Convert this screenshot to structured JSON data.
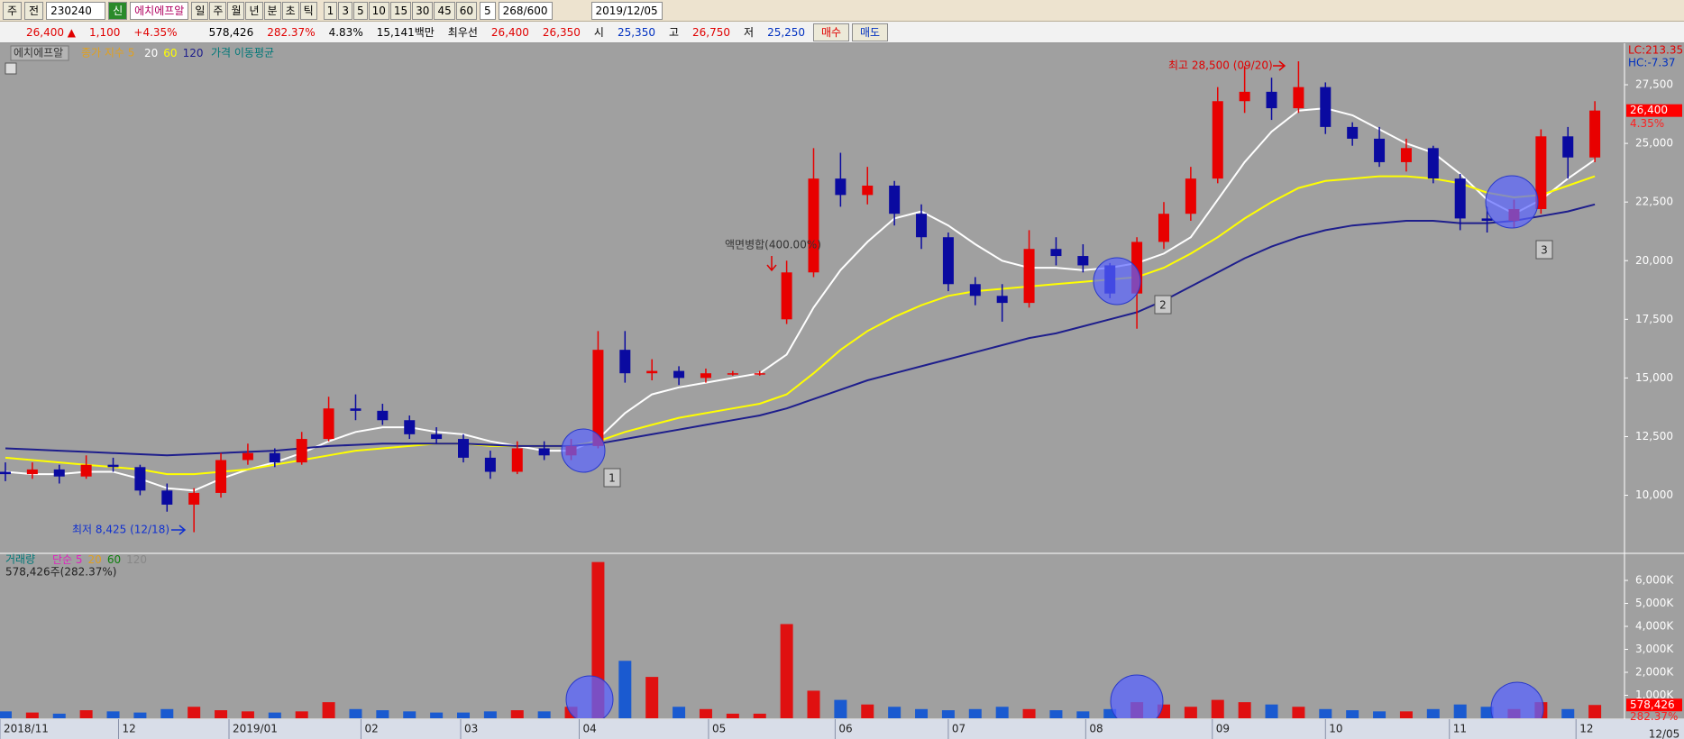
{
  "toolbar": {
    "market": "주",
    "prev": "전",
    "code": "230240",
    "new": "신",
    "name": "에치에프알",
    "periods": [
      "일",
      "주",
      "월",
      "년",
      "분",
      "초",
      "틱"
    ],
    "minutes": [
      "1",
      "3",
      "5",
      "10",
      "15",
      "30",
      "45",
      "60"
    ],
    "unit": "5",
    "count": "268/600",
    "date": "2019/12/05"
  },
  "quote": {
    "price": "26,400 ▲",
    "change": "1,100",
    "rate": "+4.35%",
    "volume": "578,426",
    "volume_rate": "282.37%",
    "turnover": "4.83%",
    "amount": "15,141백만",
    "best_label": "최우선",
    "ask": "26,400",
    "bid": "26,350",
    "open_label": "시",
    "open": "25,350",
    "high_label": "고",
    "high": "26,750",
    "low_label": "저",
    "low": "25,250",
    "buy": "매수",
    "sell": "매도"
  },
  "chart_data": {
    "type": "candlestick",
    "name": "에치에프알",
    "ma_label": "종가 지수 5",
    "ma_title": "가격 이동평균",
    "up_color": "#e80000",
    "down_color": "#0a0aa0",
    "open": [
      11000,
      10900,
      11100,
      10800,
      11300,
      11200,
      10200,
      9600,
      10100,
      11500,
      11800,
      11400,
      12400,
      13700,
      13600,
      13200,
      12600,
      12400,
      11600,
      11000,
      12000,
      11700,
      12100,
      16200,
      15200,
      15300,
      15000,
      15200,
      15200,
      17500,
      19500,
      23500,
      22800,
      23200,
      22000,
      21000,
      19000,
      18500,
      18200,
      20500,
      20200,
      19800,
      18600,
      20800,
      22000,
      23500,
      26800,
      27200,
      26500,
      27400,
      25700,
      25200,
      24200,
      24800,
      23500,
      21800,
      21700,
      22200,
      25300,
      24400
    ],
    "high": [
      11400,
      11400,
      11300,
      11700,
      11600,
      11300,
      10500,
      10300,
      11800,
      12200,
      12000,
      12700,
      14200,
      14300,
      13900,
      13400,
      12900,
      12600,
      11900,
      12300,
      12300,
      12400,
      17000,
      17000,
      15800,
      15500,
      15400,
      15300,
      15300,
      20000,
      24800,
      24600,
      24000,
      23400,
      22400,
      21200,
      19300,
      19000,
      21300,
      21000,
      20700,
      19900,
      21000,
      22500,
      24000,
      27400,
      28300,
      27800,
      28500,
      27600,
      25900,
      25700,
      25200,
      24900,
      23700,
      22300,
      22600,
      25600,
      25700,
      26800
    ],
    "low": [
      10600,
      10700,
      10500,
      10700,
      11000,
      10000,
      9300,
      8425,
      9900,
      11300,
      11200,
      11300,
      12300,
      13200,
      13000,
      12400,
      12200,
      11400,
      10700,
      10900,
      11500,
      11500,
      12000,
      14800,
      14900,
      14700,
      14800,
      15100,
      15100,
      17300,
      19300,
      22300,
      22400,
      21500,
      20500,
      18700,
      18100,
      17400,
      18000,
      19800,
      19500,
      18400,
      17100,
      20500,
      21700,
      23300,
      26300,
      26000,
      26300,
      25400,
      24900,
      24000,
      23800,
      23300,
      21300,
      21200,
      21400,
      22000,
      23500,
      24200
    ],
    "close": [
      10900,
      11100,
      10800,
      11300,
      11200,
      10200,
      9600,
      10100,
      11500,
      11800,
      11400,
      12400,
      13700,
      13600,
      13200,
      12600,
      12400,
      11600,
      11000,
      12000,
      11700,
      12100,
      16200,
      15200,
      15300,
      15000,
      15200,
      15200,
      15200,
      19500,
      23500,
      22800,
      23200,
      22000,
      21000,
      19000,
      18500,
      18200,
      20500,
      20200,
      19800,
      18600,
      20800,
      22000,
      23500,
      26800,
      27200,
      26500,
      27400,
      25700,
      25200,
      24200,
      24800,
      23500,
      21800,
      21700,
      22200,
      25300,
      24400,
      26400
    ],
    "volume": [
      300,
      250,
      200,
      350,
      300,
      250,
      400,
      500,
      350,
      300,
      250,
      300,
      700,
      400,
      350,
      300,
      250,
      250,
      300,
      350,
      300,
      500,
      6800,
      2500,
      1800,
      500,
      400,
      200,
      200,
      4100,
      1200,
      800,
      600,
      500,
      400,
      350,
      400,
      500,
      400,
      350,
      300,
      400,
      700,
      600,
      500,
      800,
      700,
      600,
      500,
      400,
      350,
      300,
      300,
      400,
      600,
      500,
      400,
      700,
      400,
      578.426
    ],
    "series": [
      {
        "name": "20",
        "color": "#ffffff",
        "values": [
          11000,
          10900,
          10900,
          11000,
          11000,
          10700,
          10300,
          10200,
          10700,
          11100,
          11400,
          11800,
          12300,
          12700,
          12900,
          12900,
          12700,
          12600,
          12300,
          12100,
          11900,
          11900,
          12400,
          13500,
          14300,
          14600,
          14800,
          15000,
          15200,
          16000,
          18000,
          19600,
          20800,
          21800,
          22100,
          21500,
          20700,
          20000,
          19700,
          19700,
          19600,
          19700,
          19900,
          20300,
          21000,
          22600,
          24200,
          25500,
          26400,
          26500,
          26200,
          25600,
          25000,
          24600,
          23700,
          22600,
          22000,
          22600,
          23500,
          24300
        ]
      },
      {
        "name": "60",
        "color": "#ffff00",
        "values": [
          11600,
          11500,
          11400,
          11300,
          11200,
          11100,
          10900,
          10900,
          11000,
          11100,
          11300,
          11500,
          11700,
          11900,
          12000,
          12100,
          12200,
          12200,
          12100,
          12100,
          12100,
          12100,
          12300,
          12700,
          13000,
          13300,
          13500,
          13700,
          13900,
          14300,
          15200,
          16200,
          17000,
          17600,
          18100,
          18500,
          18700,
          18800,
          18900,
          19000,
          19100,
          19200,
          19300,
          19700,
          20300,
          21000,
          21800,
          22500,
          23100,
          23400,
          23500,
          23600,
          23600,
          23500,
          23300,
          22900,
          22700,
          22800,
          23200,
          23600
        ]
      },
      {
        "name": "120",
        "color": "#1e1e8c",
        "values": [
          12000,
          11950,
          11900,
          11850,
          11800,
          11750,
          11700,
          11750,
          11800,
          11850,
          11900,
          12000,
          12100,
          12150,
          12200,
          12200,
          12200,
          12200,
          12150,
          12100,
          12100,
          12100,
          12200,
          12400,
          12600,
          12800,
          13000,
          13200,
          13400,
          13700,
          14100,
          14500,
          14900,
          15200,
          15500,
          15800,
          16100,
          16400,
          16700,
          16900,
          17200,
          17500,
          17800,
          18300,
          18900,
          19500,
          20100,
          20600,
          21000,
          21300,
          21500,
          21600,
          21700,
          21700,
          21600,
          21600,
          21700,
          21900,
          22100,
          22400
        ]
      }
    ],
    "ylim": [
      7600,
      29000
    ],
    "yticks": [
      {
        "value": 10000,
        "label": "10,000"
      },
      {
        "value": 12500,
        "label": "12,500"
      },
      {
        "value": 15000,
        "label": "15,000"
      },
      {
        "value": 17500,
        "label": "17,500"
      },
      {
        "value": 20000,
        "label": "20,000"
      },
      {
        "value": 22500,
        "label": "22,500"
      },
      {
        "value": 25000,
        "label": "25,000"
      },
      {
        "value": 27500,
        "label": "27,500"
      }
    ],
    "xlim": [
      -0.2,
      60.1
    ],
    "xticks": [
      {
        "value": -0.2,
        "label": "2018/11"
      },
      {
        "value": 4.2,
        "label": "12"
      },
      {
        "value": 8.3,
        "label": "2019/01"
      },
      {
        "value": 13.2,
        "label": "02"
      },
      {
        "value": 16.9,
        "label": "03"
      },
      {
        "value": 21.3,
        "label": "04"
      },
      {
        "value": 26.1,
        "label": "05"
      },
      {
        "value": 30.8,
        "label": "06"
      },
      {
        "value": 35,
        "label": "07"
      },
      {
        "value": 40.1,
        "label": "08"
      },
      {
        "value": 44.8,
        "label": "09"
      },
      {
        "value": 49,
        "label": "10"
      },
      {
        "value": 53.6,
        "label": "11"
      },
      {
        "value": 58.3,
        "label": "12"
      }
    ],
    "x_end_label": "12/05",
    "last_price": {
      "value": 26400,
      "label": "26,400"
    },
    "last_rate": "4.35%",
    "lc": "LC:213.35",
    "hc": "HC:-7.37",
    "annotations": [
      "최고 28,500 (09/20)",
      "최저 8,425 (12/18)",
      "액면병합(400.00%)"
    ],
    "signals": [
      "1",
      "2",
      "3"
    ],
    "volume_panel": {
      "title": "거래량",
      "ma_labels": [
        "단순 5",
        "20",
        "60",
        "120"
      ],
      "summary": "578,426주(282.37%)",
      "ylim": [
        0,
        7100
      ],
      "yticks": [
        {
          "value": 1000,
          "label": "1,000K"
        },
        {
          "value": 2000,
          "label": "2,000K"
        },
        {
          "value": 3000,
          "label": "3,000K"
        },
        {
          "value": 4000,
          "label": "4,000K"
        },
        {
          "value": 5000,
          "label": "5,000K"
        },
        {
          "value": 6000,
          "label": "6,000K"
        }
      ],
      "last_value": {
        "value": 578.426,
        "label": "578,426"
      },
      "last_rate": "282.37%"
    }
  }
}
